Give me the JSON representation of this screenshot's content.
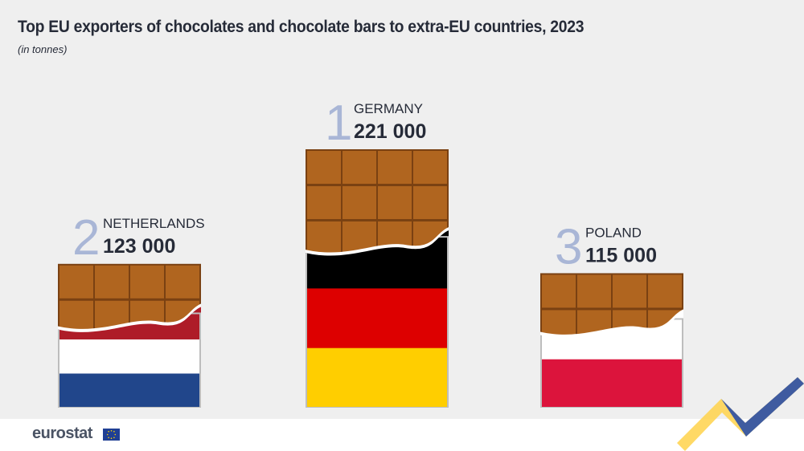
{
  "header": {
    "title": "Top EU exporters of chocolates and chocolate bars to extra-EU countries, 2023",
    "subtitle": "(in tonnes)"
  },
  "footer": {
    "logo_text": "eurostat"
  },
  "chart_data": {
    "type": "bar",
    "title": "Top EU exporters of chocolates and chocolate bars to extra-EU countries, 2023",
    "subtitle": "(in tonnes)",
    "categories": [
      "NETHERLANDS",
      "GERMANY",
      "POLAND"
    ],
    "ranks": [
      "2",
      "1",
      "3"
    ],
    "values": [
      123000,
      221000,
      115000
    ],
    "value_labels": [
      "123 000",
      "221 000",
      "115 000"
    ],
    "ylim": [
      0,
      221000
    ],
    "grid": false,
    "colors": {
      "chocolate": "#b0651f",
      "chocolate_edge": "#7a4112",
      "rank_number": "#a9b6d6",
      "text": "#262b38",
      "wrapper_edge": "#bdbdbd"
    },
    "flags": [
      [
        "#ae1c28",
        "#ffffff",
        "#21468b"
      ],
      [
        "#000000",
        "#dd0000",
        "#ffce00"
      ],
      [
        "#ffffff",
        "#dc143c"
      ]
    ]
  }
}
